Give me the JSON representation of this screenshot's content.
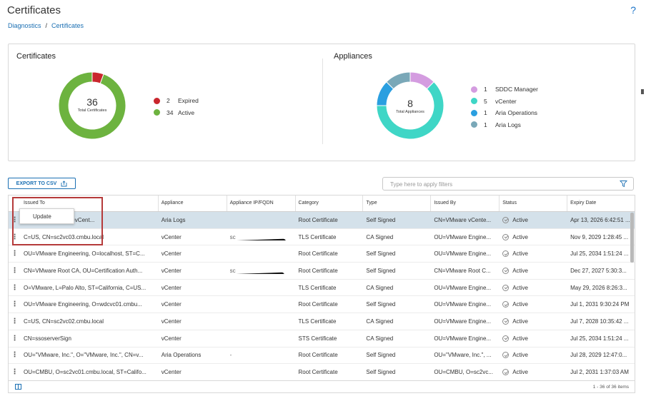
{
  "header": {
    "title": "Certificates",
    "help": "?"
  },
  "breadcrumb": {
    "parent": "Diagnostics",
    "separator": "/",
    "current": "Certificates"
  },
  "certificates_summary": {
    "title": "Certificates",
    "total": "36",
    "total_label": "Total Certificates",
    "legend": [
      {
        "count": "2",
        "label": "Expired",
        "color": "#c9262d",
        "value": 2
      },
      {
        "count": "34",
        "label": "Active",
        "color": "#6db33f",
        "value": 34
      }
    ]
  },
  "appliances_summary": {
    "title": "Appliances",
    "total": "8",
    "total_label": "Total Appliances",
    "legend": [
      {
        "count": "1",
        "label": "SDDC Manager",
        "color": "#d49ce0",
        "value": 1
      },
      {
        "count": "5",
        "label": "vCenter",
        "color": "#3fd6c6",
        "value": 5
      },
      {
        "count": "1",
        "label": "Aria Operations",
        "color": "#2a9fe0",
        "value": 1
      },
      {
        "count": "1",
        "label": "Aria Logs",
        "color": "#7aa8b8",
        "value": 1
      }
    ]
  },
  "toolbar": {
    "export_label": "EXPORT TO CSV",
    "filter_placeholder": "Type here to apply filters"
  },
  "table": {
    "columns": [
      "Issued To",
      "Appliance",
      "Appliance IP/FQDN",
      "Category",
      "Type",
      "Issued By",
      "Status",
      "Expiry Date"
    ],
    "rows": [
      {
        "issued_to": "ter Log Insight, OU=vCent...",
        "appliance": "Aria Logs",
        "ip": "",
        "category": "Root Certificate",
        "type": "Self Signed",
        "issued_by": "CN=VMware vCente...",
        "status": "Active",
        "expiry": "Apr 13, 2026 6:42:51 ..."
      },
      {
        "issued_to": "C=US, CN=sc2vc03.cmbu.local",
        "appliance": "vCenter",
        "ip": "sc",
        "category": "TLS Certificate",
        "type": "CA Signed",
        "issued_by": "OU=VMware Engine...",
        "status": "Active",
        "expiry": "Nov 9, 2029 1:28:45 ..."
      },
      {
        "issued_to": "OU=VMware Engineering, O=localhost, ST=C...",
        "appliance": "vCenter",
        "ip": "",
        "category": "Root Certificate",
        "type": "Self Signed",
        "issued_by": "OU=VMware Engine...",
        "status": "Active",
        "expiry": "Jul 25, 2034 1:51:24 ..."
      },
      {
        "issued_to": "CN=VMware Root CA, OU=Certification Auth...",
        "appliance": "vCenter",
        "ip": "sc",
        "category": "Root Certificate",
        "type": "Self Signed",
        "issued_by": "CN=VMware Root C...",
        "status": "Active",
        "expiry": "Dec 27, 2027 5:30:3..."
      },
      {
        "issued_to": "O=VMware, L=Palo Alto, ST=California, C=US...",
        "appliance": "vCenter",
        "ip": "",
        "category": "TLS Certificate",
        "type": "CA Signed",
        "issued_by": "OU=VMware Engine...",
        "status": "Active",
        "expiry": "May 29, 2026 8:26:3..."
      },
      {
        "issued_to": "OU=VMware Engineering, O=wdcvc01.cmbu...",
        "appliance": "vCenter",
        "ip": "",
        "category": "Root Certificate",
        "type": "Self Signed",
        "issued_by": "OU=VMware Engine...",
        "status": "Active",
        "expiry": "Jul 1, 2031 9:30:24 PM"
      },
      {
        "issued_to": "C=US, CN=sc2vc02.cmbu.local",
        "appliance": "vCenter",
        "ip": "",
        "category": "TLS Certificate",
        "type": "CA Signed",
        "issued_by": "OU=VMware Engine...",
        "status": "Active",
        "expiry": "Jul 7, 2028 10:35:42 ..."
      },
      {
        "issued_to": "CN=ssoserverSign",
        "appliance": "vCenter",
        "ip": "",
        "category": "STS Certificate",
        "type": "CA Signed",
        "issued_by": "OU=VMware Engine...",
        "status": "Active",
        "expiry": "Jul 25, 2034 1:51:24 ..."
      },
      {
        "issued_to": "OU=\"VMware, Inc.\", O=\"VMware, Inc.\", CN=v...",
        "appliance": "Aria Operations",
        "ip": "-",
        "category": "Root Certificate",
        "type": "Self Signed",
        "issued_by": "OU=\"VMware, Inc.\", ...",
        "status": "Active",
        "expiry": "Jul 28, 2029 12:47:0..."
      },
      {
        "issued_to": "OU=CMBU, O=sc2vc01.cmbu.local, ST=Califo...",
        "appliance": "vCenter",
        "ip": "",
        "category": "Root Certificate",
        "type": "Self Signed",
        "issued_by": "OU=CMBU, O=sc2vc...",
        "status": "Active",
        "expiry": "Jul 2, 2031 1:37:03 AM"
      }
    ],
    "footer": "1 - 36 of 36 items"
  },
  "row_menu": {
    "update_label": "Update"
  },
  "icons": {
    "row_menu": "kebab-icon",
    "status": "check-circle-icon",
    "filter": "filter-icon",
    "export": "export-icon",
    "columns": "column-toggle-icon"
  }
}
